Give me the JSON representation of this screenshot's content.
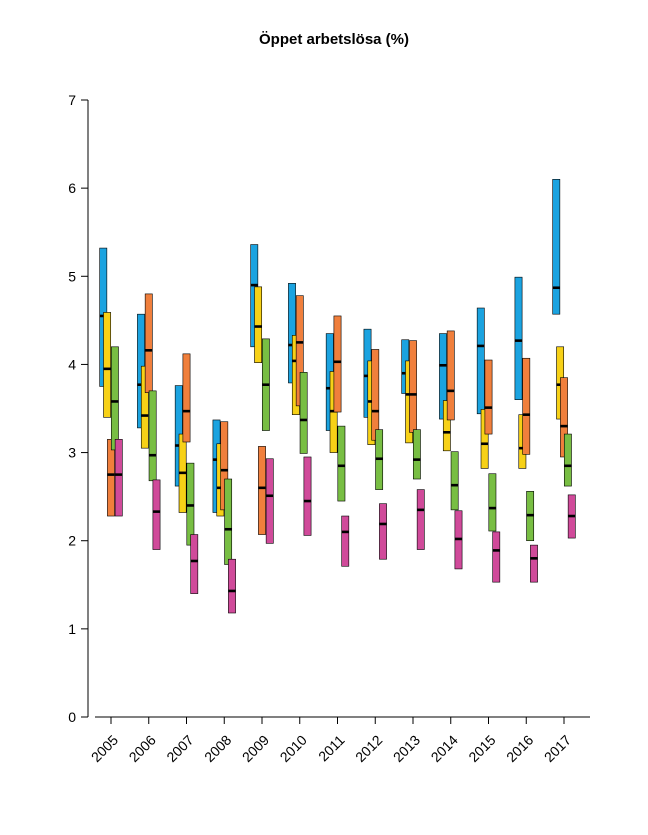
{
  "chart_data": {
    "type": "bar",
    "subtype": "floating-range-bars-with-median",
    "title": "Öppet arbetslösa (%)",
    "xlabel": "",
    "ylabel": "",
    "ylim": [
      0,
      7
    ],
    "yticks": [
      0,
      1,
      2,
      3,
      4,
      5,
      6,
      7
    ],
    "grid": false,
    "categories": [
      "2005",
      "2006",
      "2007",
      "2008",
      "2009",
      "2010",
      "2011",
      "2012",
      "2013",
      "2014",
      "2015",
      "2016",
      "2017"
    ],
    "series": [
      {
        "color": "#1ba3e0",
        "bars": [
          {
            "x": 2005.0,
            "low": 3.75,
            "high": 5.32,
            "median": 4.55
          },
          {
            "x": 2006.0,
            "low": 3.28,
            "high": 4.57,
            "median": 3.77
          },
          {
            "x": 2007.0,
            "low": 2.62,
            "high": 3.76,
            "median": 3.08
          },
          {
            "x": 2008.0,
            "low": 2.32,
            "high": 3.37,
            "median": 2.92
          },
          {
            "x": 2009.0,
            "low": 4.2,
            "high": 5.36,
            "median": 4.9
          },
          {
            "x": 2010.0,
            "low": 3.79,
            "high": 4.92,
            "median": 4.22
          },
          {
            "x": 2011.0,
            "low": 3.25,
            "high": 4.35,
            "median": 3.73
          },
          {
            "x": 2012.0,
            "low": 3.4,
            "high": 4.4,
            "median": 3.87
          },
          {
            "x": 2013.0,
            "low": 3.67,
            "high": 4.28,
            "median": 3.9
          },
          {
            "x": 2014.0,
            "low": 3.38,
            "high": 4.35,
            "median": 3.99
          },
          {
            "x": 2015.0,
            "low": 3.44,
            "high": 4.64,
            "median": 4.21
          },
          {
            "x": 2016.0,
            "low": 3.6,
            "high": 4.99,
            "median": 4.27
          },
          {
            "x": 2017.0,
            "low": 4.57,
            "high": 6.1,
            "median": 4.87
          }
        ]
      },
      {
        "color": "#f7d117",
        "bars": [
          {
            "x": 2005.0,
            "low": 3.4,
            "high": 4.59,
            "median": 3.95
          },
          {
            "x": 2006.0,
            "low": 3.05,
            "high": 3.98,
            "median": 3.42
          },
          {
            "x": 2007.0,
            "low": 2.32,
            "high": 3.21,
            "median": 2.77
          },
          {
            "x": 2008.0,
            "low": 2.28,
            "high": 3.1,
            "median": 2.6
          },
          {
            "x": 2009.0,
            "low": 4.02,
            "high": 4.88,
            "median": 4.43
          },
          {
            "x": 2010.0,
            "low": 3.43,
            "high": 4.33,
            "median": 4.04
          },
          {
            "x": 2011.0,
            "low": 3.0,
            "high": 3.92,
            "median": 3.47
          },
          {
            "x": 2012.0,
            "low": 3.09,
            "high": 4.04,
            "median": 3.58
          },
          {
            "x": 2013.0,
            "low": 3.11,
            "high": 4.04,
            "median": 3.66
          },
          {
            "x": 2014.0,
            "low": 3.02,
            "high": 3.59,
            "median": 3.23
          },
          {
            "x": 2015.0,
            "low": 2.82,
            "high": 3.49,
            "median": 3.1
          },
          {
            "x": 2016.0,
            "low": 2.82,
            "high": 3.43,
            "median": 3.05
          },
          {
            "x": 2017.0,
            "low": 3.38,
            "high": 4.2,
            "median": 3.77
          }
        ]
      },
      {
        "color": "#f07f3c",
        "bars": [
          {
            "x": 2005.0,
            "low": 2.28,
            "high": 3.15,
            "median": 2.75
          },
          {
            "x": 2006.0,
            "low": 3.68,
            "high": 4.8,
            "median": 4.16
          },
          {
            "x": 2007.0,
            "low": 3.12,
            "high": 4.12,
            "median": 3.47
          },
          {
            "x": 2008.0,
            "low": 2.35,
            "high": 3.35,
            "median": 2.8
          },
          {
            "x": 2009.0,
            "low": 2.07,
            "high": 3.07,
            "median": 2.6
          },
          {
            "x": 2010.0,
            "low": 3.53,
            "high": 4.78,
            "median": 4.25
          },
          {
            "x": 2011.0,
            "low": 3.46,
            "high": 4.55,
            "median": 4.03
          },
          {
            "x": 2012.0,
            "low": 3.14,
            "high": 4.17,
            "median": 3.47
          },
          {
            "x": 2013.0,
            "low": 3.23,
            "high": 4.27,
            "median": 3.66
          },
          {
            "x": 2014.0,
            "low": 3.37,
            "high": 4.38,
            "median": 3.7
          },
          {
            "x": 2015.0,
            "low": 3.21,
            "high": 4.05,
            "median": 3.51
          },
          {
            "x": 2016.0,
            "low": 2.98,
            "high": 4.07,
            "median": 3.43
          },
          {
            "x": 2017.0,
            "low": 2.95,
            "high": 3.85,
            "median": 3.3
          }
        ]
      },
      {
        "color": "#78be43",
        "bars": [
          {
            "x": 2005.0,
            "low": 3.03,
            "high": 4.2,
            "median": 3.58
          },
          {
            "x": 2006.0,
            "low": 2.68,
            "high": 3.7,
            "median": 2.97
          },
          {
            "x": 2007.0,
            "low": 1.95,
            "high": 2.88,
            "median": 2.4
          },
          {
            "x": 2008.0,
            "low": 1.73,
            "high": 2.7,
            "median": 2.13
          },
          {
            "x": 2009.0,
            "low": 3.25,
            "high": 4.29,
            "median": 3.77
          },
          {
            "x": 2010.0,
            "low": 2.99,
            "high": 3.91,
            "median": 3.37
          },
          {
            "x": 2011.0,
            "low": 2.45,
            "high": 3.3,
            "median": 2.85
          },
          {
            "x": 2012.0,
            "low": 2.58,
            "high": 3.26,
            "median": 2.93
          },
          {
            "x": 2013.0,
            "low": 2.7,
            "high": 3.26,
            "median": 2.92
          },
          {
            "x": 2014.0,
            "low": 2.35,
            "high": 3.01,
            "median": 2.63
          },
          {
            "x": 2015.0,
            "low": 2.11,
            "high": 2.76,
            "median": 2.37
          },
          {
            "x": 2016.0,
            "low": 2.0,
            "high": 2.56,
            "median": 2.29
          },
          {
            "x": 2017.0,
            "low": 2.62,
            "high": 3.21,
            "median": 2.85
          }
        ]
      },
      {
        "color": "#d04a9a",
        "bars": [
          {
            "x": 2005.0,
            "low": 2.28,
            "high": 3.15,
            "median": 2.75
          },
          {
            "x": 2006.0,
            "low": 1.9,
            "high": 2.69,
            "median": 2.33
          },
          {
            "x": 2007.0,
            "low": 1.4,
            "high": 2.07,
            "median": 1.77
          },
          {
            "x": 2008.0,
            "low": 1.18,
            "high": 1.79,
            "median": 1.43
          },
          {
            "x": 2009.0,
            "low": 1.97,
            "high": 2.93,
            "median": 2.51
          },
          {
            "x": 2010.0,
            "low": 2.06,
            "high": 2.95,
            "median": 2.45
          },
          {
            "x": 2011.0,
            "low": 1.71,
            "high": 2.28,
            "median": 2.1
          },
          {
            "x": 2012.0,
            "low": 1.79,
            "high": 2.42,
            "median": 2.19
          },
          {
            "x": 2013.0,
            "low": 1.9,
            "high": 2.58,
            "median": 2.35
          },
          {
            "x": 2014.0,
            "low": 1.68,
            "high": 2.34,
            "median": 2.02
          },
          {
            "x": 2015.0,
            "low": 1.53,
            "high": 2.1,
            "median": 1.89
          },
          {
            "x": 2016.0,
            "low": 1.53,
            "high": 1.95,
            "median": 1.8
          },
          {
            "x": 2017.0,
            "low": 2.03,
            "high": 2.52,
            "median": 2.28
          }
        ]
      }
    ]
  }
}
